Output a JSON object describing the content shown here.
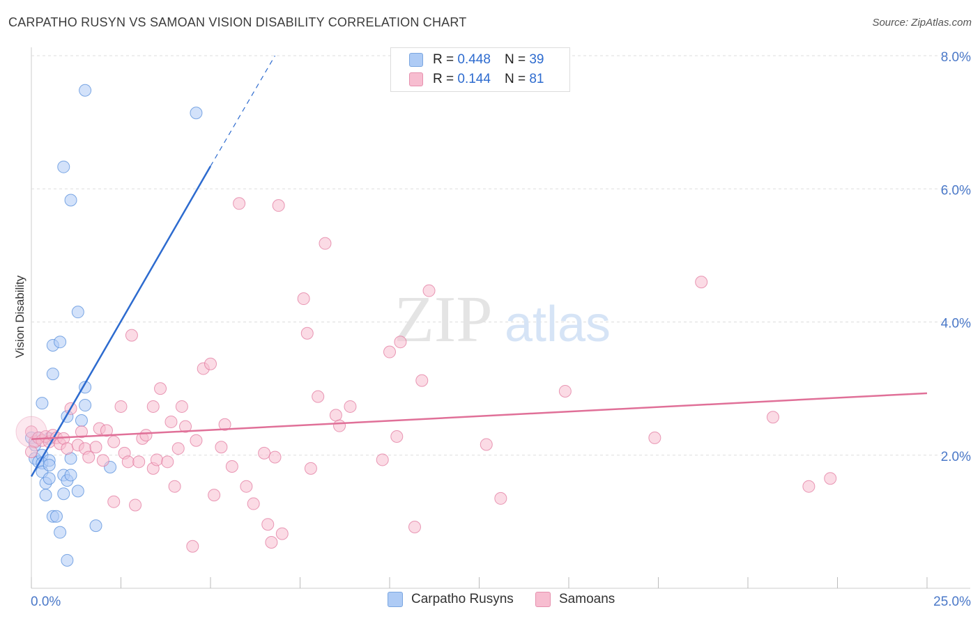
{
  "title": "CARPATHO RUSYN VS SAMOAN VISION DISABILITY CORRELATION CHART",
  "source": "Source: ZipAtlas.com",
  "watermark": {
    "zip": "ZIP",
    "atlas": "atlas"
  },
  "legend": {
    "r_label": "R =",
    "n_label": "N =",
    "rows": [
      {
        "r": "0.448",
        "n": "39",
        "color": "#aecbf5"
      },
      {
        "r": "0.144",
        "n": "81",
        "color": "#f7bdd0"
      }
    ]
  },
  "bottom_legend": [
    {
      "label": "Carpatho Rusyns",
      "color": "#aecbf5"
    },
    {
      "label": "Samoans",
      "color": "#f7bdd0"
    }
  ],
  "chart_data": {
    "type": "scatter",
    "ylabel": "Vision Disability",
    "xlim": [
      0,
      25
    ],
    "ylim": [
      0,
      8
    ],
    "x_tick_labels": [
      {
        "value": 0,
        "label": "0.0%"
      },
      {
        "value": 25,
        "label": "25.0%"
      }
    ],
    "y_tick_labels": [
      {
        "value": 2,
        "label": "2.0%"
      },
      {
        "value": 4,
        "label": "4.0%"
      },
      {
        "value": 6,
        "label": "6.0%"
      },
      {
        "value": 8,
        "label": "8.0%"
      }
    ],
    "series": [
      {
        "name": "Carpatho Rusyns",
        "color": "#4a86d8",
        "fill": "#aecbf5",
        "regression": {
          "x0": 0,
          "y0": 1.68,
          "x1": 5.0,
          "y1": 6.34,
          "dash_to_x": 6.8,
          "dash_to_y": 8.0
        },
        "points": [
          [
            0.0,
            2.26
          ],
          [
            0.1,
            2.15
          ],
          [
            0.1,
            1.95
          ],
          [
            0.2,
            2.26
          ],
          [
            0.2,
            1.9
          ],
          [
            0.3,
            2.0
          ],
          [
            0.3,
            1.88
          ],
          [
            0.3,
            1.75
          ],
          [
            0.3,
            2.78
          ],
          [
            0.4,
            1.58
          ],
          [
            0.4,
            1.4
          ],
          [
            0.5,
            1.65
          ],
          [
            0.5,
            1.92
          ],
          [
            0.5,
            1.85
          ],
          [
            0.5,
            2.25
          ],
          [
            0.6,
            1.08
          ],
          [
            0.6,
            3.65
          ],
          [
            0.6,
            3.22
          ],
          [
            0.7,
            1.08
          ],
          [
            0.8,
            0.84
          ],
          [
            0.8,
            3.7
          ],
          [
            0.9,
            1.7
          ],
          [
            0.9,
            1.42
          ],
          [
            0.9,
            6.33
          ],
          [
            1.0,
            0.42
          ],
          [
            1.0,
            2.58
          ],
          [
            1.0,
            1.62
          ],
          [
            1.1,
            1.95
          ],
          [
            1.1,
            1.7
          ],
          [
            1.1,
            5.83
          ],
          [
            1.3,
            1.46
          ],
          [
            1.3,
            4.15
          ],
          [
            1.4,
            2.52
          ],
          [
            1.5,
            2.75
          ],
          [
            1.5,
            3.02
          ],
          [
            1.5,
            7.48
          ],
          [
            1.8,
            0.94
          ],
          [
            2.2,
            1.82
          ],
          [
            4.6,
            7.14
          ]
        ]
      },
      {
        "name": "Samoans",
        "color": "#e07098",
        "fill": "#f7bdd0",
        "regression": {
          "x0": 0,
          "y0": 2.24,
          "x1": 25,
          "y1": 2.93
        },
        "points": [
          [
            0.0,
            2.35
          ],
          [
            0.1,
            2.2
          ],
          [
            0.2,
            2.26
          ],
          [
            0.3,
            2.22
          ],
          [
            0.4,
            2.28
          ],
          [
            0.5,
            2.2
          ],
          [
            0.6,
            2.3
          ],
          [
            0.7,
            2.26
          ],
          [
            0.8,
            2.17
          ],
          [
            0.9,
            2.25
          ],
          [
            1.0,
            2.1
          ],
          [
            1.1,
            2.7
          ],
          [
            1.3,
            2.15
          ],
          [
            1.4,
            2.35
          ],
          [
            1.5,
            2.1
          ],
          [
            1.6,
            1.97
          ],
          [
            1.8,
            2.12
          ],
          [
            1.9,
            2.4
          ],
          [
            2.0,
            1.92
          ],
          [
            2.1,
            2.37
          ],
          [
            2.3,
            2.2
          ],
          [
            2.3,
            1.3
          ],
          [
            2.5,
            2.73
          ],
          [
            2.6,
            2.03
          ],
          [
            2.7,
            1.9
          ],
          [
            2.8,
            3.8
          ],
          [
            2.9,
            1.25
          ],
          [
            3.0,
            1.9
          ],
          [
            3.1,
            2.25
          ],
          [
            3.2,
            2.3
          ],
          [
            3.4,
            1.8
          ],
          [
            3.4,
            2.73
          ],
          [
            3.5,
            1.93
          ],
          [
            3.6,
            3.0
          ],
          [
            3.8,
            1.9
          ],
          [
            3.9,
            2.5
          ],
          [
            4.0,
            1.53
          ],
          [
            4.1,
            2.1
          ],
          [
            4.2,
            2.73
          ],
          [
            4.3,
            2.43
          ],
          [
            4.5,
            0.63
          ],
          [
            4.6,
            2.22
          ],
          [
            4.8,
            3.3
          ],
          [
            5.0,
            3.37
          ],
          [
            5.1,
            1.4
          ],
          [
            5.3,
            2.12
          ],
          [
            5.4,
            2.46
          ],
          [
            5.6,
            1.83
          ],
          [
            5.8,
            5.78
          ],
          [
            6.0,
            1.53
          ],
          [
            6.2,
            1.27
          ],
          [
            6.5,
            2.03
          ],
          [
            6.6,
            0.96
          ],
          [
            6.7,
            0.69
          ],
          [
            6.8,
            1.97
          ],
          [
            6.9,
            5.75
          ],
          [
            7.0,
            0.82
          ],
          [
            7.6,
            4.35
          ],
          [
            7.7,
            3.83
          ],
          [
            7.8,
            1.8
          ],
          [
            8.0,
            2.88
          ],
          [
            8.2,
            5.18
          ],
          [
            8.5,
            2.6
          ],
          [
            8.6,
            2.44
          ],
          [
            8.9,
            2.73
          ],
          [
            9.8,
            1.93
          ],
          [
            10.0,
            3.55
          ],
          [
            10.2,
            2.28
          ],
          [
            10.3,
            3.7
          ],
          [
            10.7,
            0.92
          ],
          [
            10.9,
            3.12
          ],
          [
            11.1,
            4.47
          ],
          [
            12.7,
            2.16
          ],
          [
            13.1,
            1.35
          ],
          [
            14.9,
            2.96
          ],
          [
            17.4,
            2.26
          ],
          [
            18.7,
            4.6
          ],
          [
            20.7,
            2.57
          ],
          [
            21.7,
            1.53
          ],
          [
            22.3,
            1.65
          ],
          [
            0.0,
            2.05
          ]
        ]
      }
    ]
  }
}
